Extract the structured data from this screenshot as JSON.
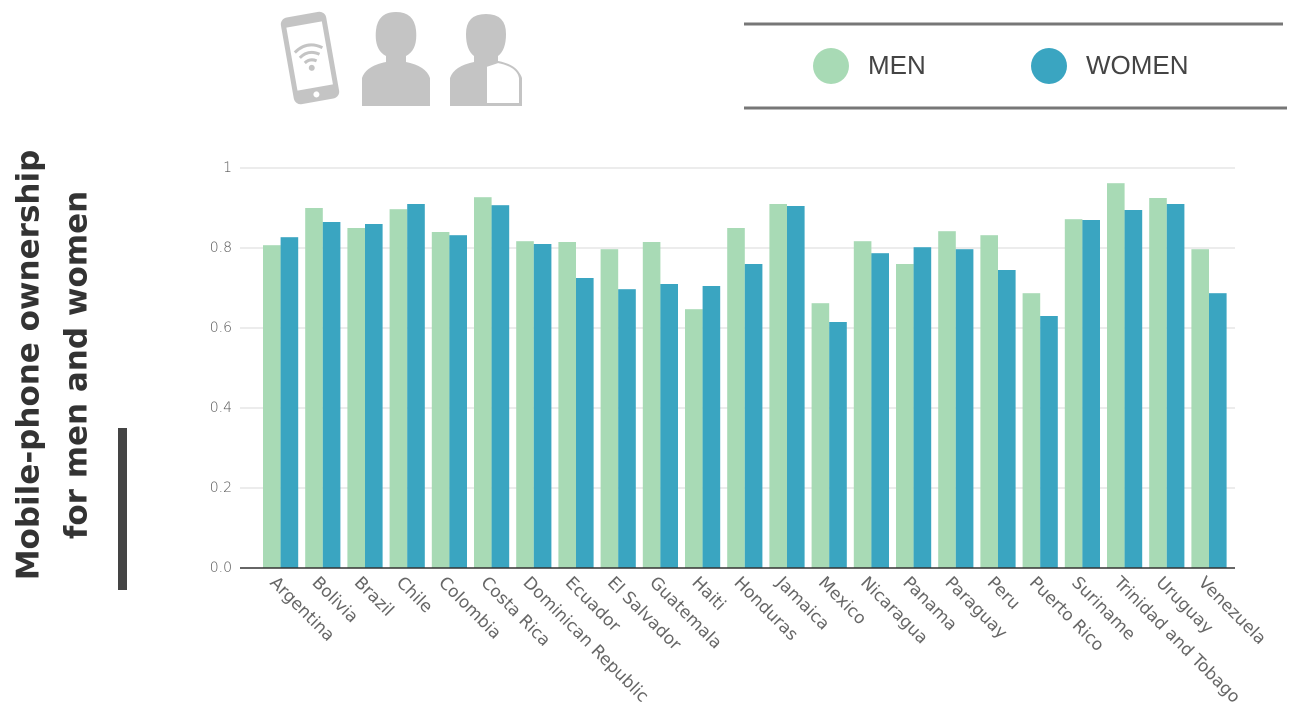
{
  "chart_data": {
    "type": "bar",
    "title": [
      "Mobile-phone ownership",
      "for men and women"
    ],
    "categories": [
      "Argentina",
      "Bolivia",
      "Brazil",
      "Chile",
      "Colombia",
      "Costa Rica",
      "Dominican Republic",
      "Ecuador",
      "El Salvador",
      "Guatemala",
      "Haiti",
      "Honduras",
      "Jamaica",
      "Mexico",
      "Nicaragua",
      "Panama",
      "Paraguay",
      "Peru",
      "Puerto Rico",
      "Suriname",
      "Trinidad and Tobago",
      "Uruguay",
      "Venezuela"
    ],
    "series": [
      {
        "name": "MEN",
        "color": "#a8dab5",
        "values": [
          0.807,
          0.9,
          0.85,
          0.897,
          0.84,
          0.927,
          0.817,
          0.815,
          0.797,
          0.815,
          0.647,
          0.85,
          0.91,
          0.662,
          0.817,
          0.76,
          0.842,
          0.832,
          0.687,
          0.872,
          0.962,
          0.925,
          0.797
        ]
      },
      {
        "name": "WOMEN",
        "color": "#3aa5c1",
        "values": [
          0.827,
          0.865,
          0.86,
          0.91,
          0.832,
          0.907,
          0.81,
          0.725,
          0.697,
          0.71,
          0.705,
          0.76,
          0.905,
          0.615,
          0.787,
          0.802,
          0.797,
          0.745,
          0.63,
          0.87,
          0.895,
          0.91,
          0.687
        ]
      }
    ],
    "ylim": [
      0,
      1
    ],
    "yticks": [
      {
        "value": 0,
        "label": "0.0"
      },
      0.2,
      0.4,
      0.6,
      0.8,
      1
    ],
    "grid": true
  }
}
